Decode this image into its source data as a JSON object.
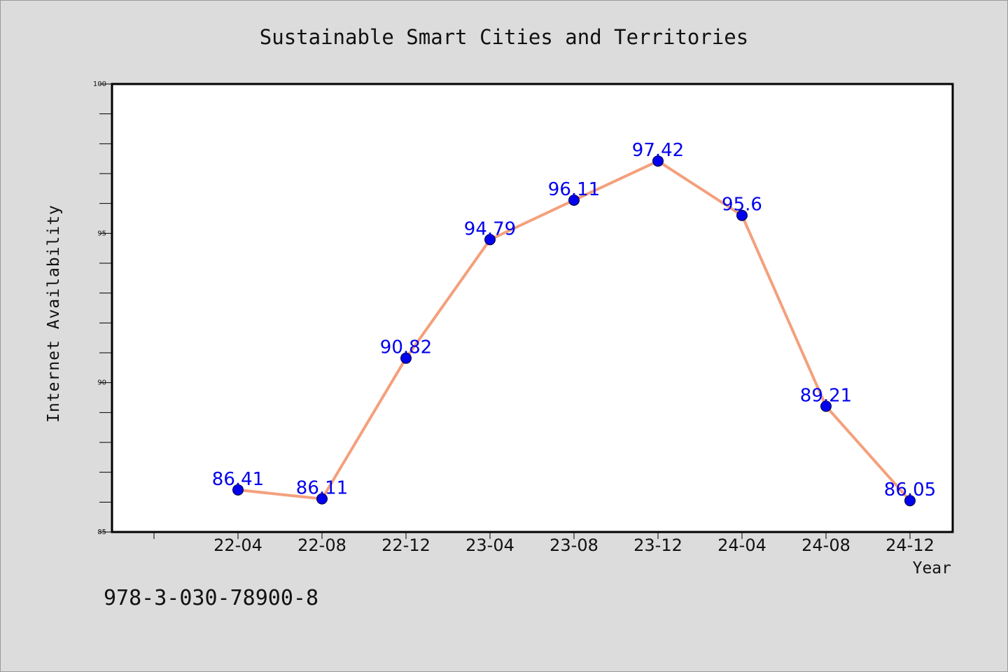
{
  "chart_data": {
    "type": "line",
    "title": "Sustainable Smart Cities and Territories",
    "xlabel": "Year",
    "ylabel": "Internet Availability",
    "categories": [
      "22-04",
      "22-08",
      "22-12",
      "23-04",
      "23-08",
      "23-12",
      "24-04",
      "24-08",
      "24-12"
    ],
    "series": [
      {
        "values": [
          86.41,
          86.11,
          90.82,
          94.79,
          96.11,
          97.42,
          95.6,
          89.21,
          86.05
        ],
        "data_labels": [
          "86.41",
          "86.11",
          "90.82",
          "94.79",
          "96.11",
          "97.42",
          "95.6",
          "89.21",
          "86.05"
        ],
        "line_color": "#f4a07c",
        "marker_color": "#0000ee",
        "label_color": "#0000ee"
      }
    ],
    "ylim": [
      85,
      100
    ],
    "yticks": [
      85,
      90,
      95,
      100
    ],
    "ytick_labels": [
      "85",
      "90",
      "95",
      "100"
    ],
    "grid": false,
    "legend": "none"
  },
  "footer": {
    "isbn": "978-3-030-78900-8"
  }
}
